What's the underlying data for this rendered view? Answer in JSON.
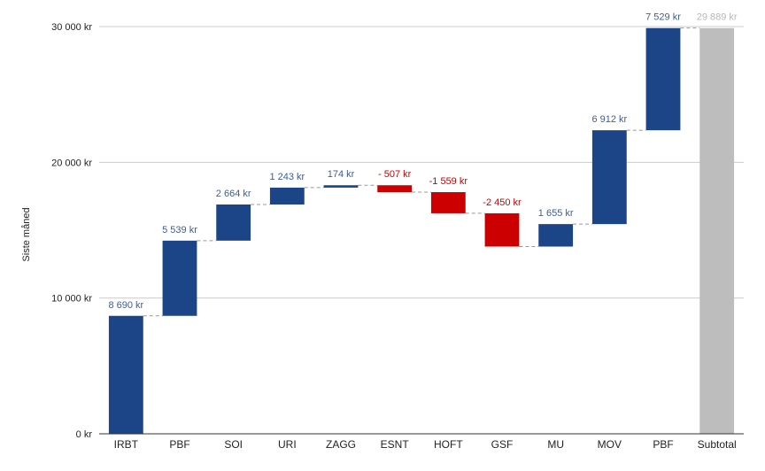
{
  "chart_data": {
    "type": "bar",
    "subtype": "waterfall",
    "title": "",
    "xlabel": "",
    "ylabel": "Siste måned",
    "ylim": [
      0,
      30000
    ],
    "yticks": [
      0,
      10000,
      20000,
      30000
    ],
    "ytick_labels": [
      "0 kr",
      "10 000 kr",
      "20 000 kr",
      "30 000 kr"
    ],
    "grid": true,
    "legend": "none",
    "categories": [
      "IRBT",
      "PBF",
      "SOI",
      "URI",
      "ZAGG",
      "ESNT",
      "HOFT",
      "GSF",
      "MU",
      "MOV",
      "PBF",
      "Subtotal"
    ],
    "values": [
      8690,
      5539,
      2664,
      1243,
      174,
      -507,
      -1559,
      -2450,
      1655,
      6912,
      7529,
      29889
    ],
    "is_total": [
      false,
      false,
      false,
      false,
      false,
      false,
      false,
      false,
      false,
      false,
      false,
      true
    ],
    "data_labels": [
      "8 690 kr",
      "5 539 kr",
      "2 664 kr",
      "1 243 kr",
      "174 kr",
      "- 507 kr",
      "-1 559 kr",
      "-2 450 kr",
      "1 655 kr",
      "6 912 kr",
      "7 529 kr",
      "29 889 kr"
    ],
    "colors": {
      "increase": "#1c4587",
      "decrease": "#cc0000",
      "total": "#bdbdbd",
      "increase_label": "#3d5c99",
      "decrease_label": "#cc0000",
      "total_label": "#b7b7b7",
      "grid": "#cccccc",
      "axis": "#333333",
      "connector": "#999999"
    }
  }
}
